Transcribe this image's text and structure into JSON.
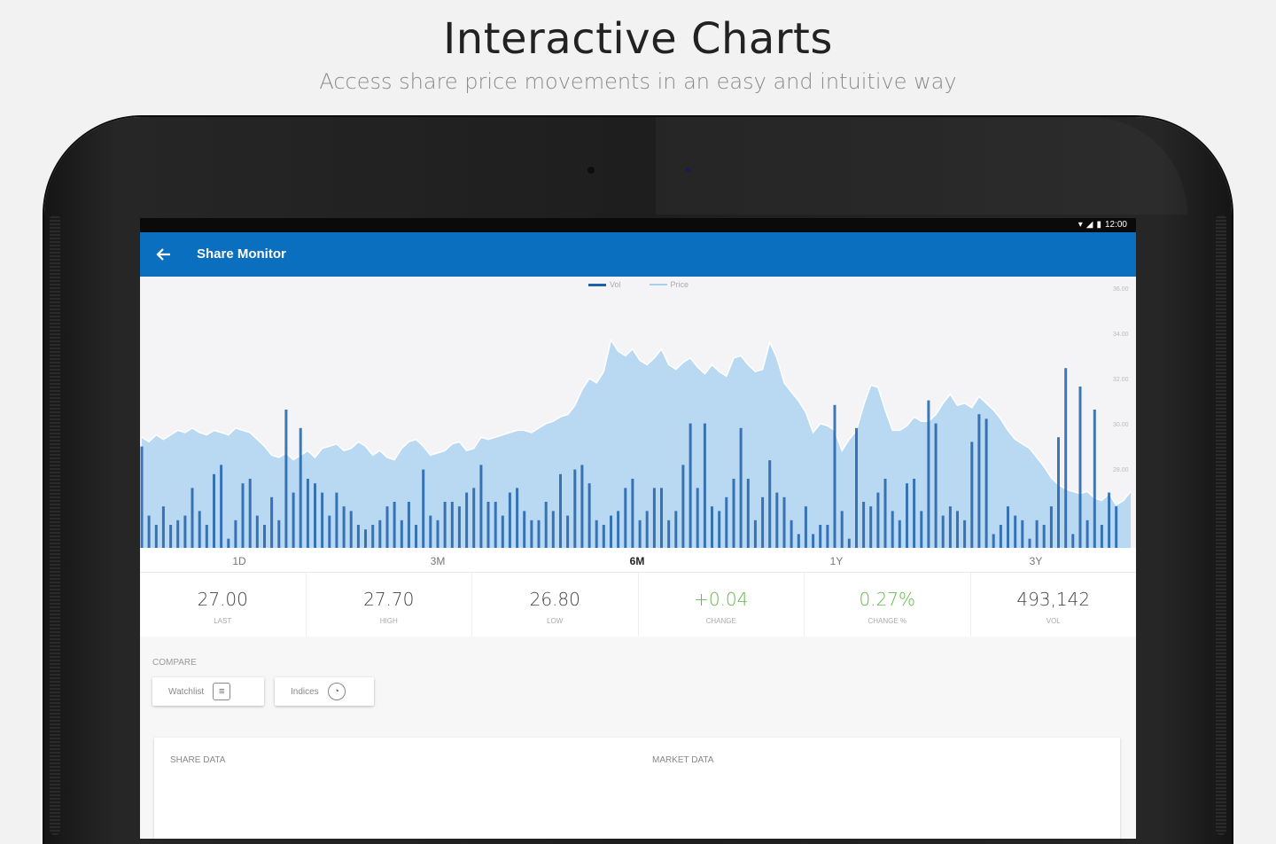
{
  "promo": {
    "title": "Interactive Charts",
    "subtitle": "Access share price movements in an easy and intuitive way"
  },
  "status_bar": {
    "time": "12:00",
    "icons": [
      "wifi-icon",
      "signal-icon",
      "battery-icon"
    ]
  },
  "app_bar": {
    "title": "Share Monitor",
    "back_icon": "arrow-left-icon",
    "color": "#0b6fbf"
  },
  "chart_data": {
    "type": "bar",
    "legend": [
      "Vol",
      "Price"
    ],
    "colors": {
      "vol": "#1f5fa8",
      "price_fill": "#b9d9f3",
      "price_line": "#ffffff"
    },
    "yticks": [
      "36.00",
      "34.00",
      "32.00",
      "30.00",
      "28.00",
      "26.00"
    ],
    "price": [
      29.4,
      29.2,
      29.5,
      29.3,
      29.5,
      29.7,
      29.6,
      29.8,
      29.6,
      29.5,
      29.7,
      29.6,
      29.5,
      29.8,
      29.7,
      29.6,
      29.3,
      29.0,
      28.6,
      28.5,
      28.7,
      28.4,
      28.6,
      28.8,
      28.5,
      28.9,
      29.0,
      29.1,
      28.8,
      28.9,
      29.2,
      29.0,
      28.6,
      28.8,
      28.5,
      28.4,
      28.9,
      29.2,
      29.3,
      29.0,
      28.6,
      28.7,
      28.8,
      29.1,
      29.2,
      28.8,
      28.9,
      29.4,
      29.3,
      29.4,
      29.5,
      29.6,
      29.7,
      29.7,
      29.6,
      29.8,
      30.0,
      30.1,
      30.3,
      30.4,
      30.8,
      31.5,
      32.0,
      31.8,
      32.3,
      33.7,
      33.2,
      33.0,
      33.3,
      32.8,
      32.6,
      32.9,
      33.3,
      32.6,
      32.4,
      32.7,
      32.9,
      32.5,
      32.2,
      32.6,
      32.3,
      32.1,
      32.9,
      33.0,
      32.6,
      32.3,
      32.4,
      33.6,
      32.9,
      31.8,
      31.4,
      31.0,
      30.5,
      29.6,
      30.0,
      29.9,
      29.7,
      28.8,
      29.3,
      29.7,
      30.8,
      31.7,
      31.6,
      30.6,
      29.7,
      29.7,
      29.9,
      30.3,
      30.1,
      30.1,
      30.4,
      30.9,
      31.3,
      30.8,
      30.9,
      30.7,
      31.2,
      30.9,
      30.6,
      30.2,
      29.7,
      29.3,
      29.1,
      28.9,
      28.5,
      28.1,
      27.6,
      27.3,
      27.1,
      27.0,
      26.9,
      27.0,
      26.7,
      26.6,
      26.9,
      26.4,
      26.6,
      27.0
    ],
    "volume": [
      2.2,
      0.7,
      0.5,
      0.9,
      0.5,
      0.6,
      0.7,
      1.3,
      0.8,
      0.5,
      1.6,
      1.8,
      0.2,
      0.6,
      1.4,
      1.5,
      0.7,
      0.5,
      1.1,
      0.6,
      1.4,
      1.2,
      2.6,
      1.5,
      1.4,
      1.2,
      0.7,
      1.2,
      0.9,
      0.8,
      0.5,
      0.4,
      0.5,
      0.6,
      0.9,
      1.0,
      0.6,
      1.0,
      0.5,
      1.7,
      0.7,
      0.6,
      1.0,
      1.0,
      0.9,
      1.2,
      1.3,
      1.8,
      1.0,
      1.0,
      0.7,
      1.2,
      1.3,
      0.8,
      0.6,
      0.6,
      1.0,
      0.8,
      1.6,
      0.7,
      1.7,
      1.8,
      1.4,
      0.6,
      0.5,
      0.7,
      0.8,
      1.3,
      1.5,
      0.6,
      0.8,
      1.3,
      1.3,
      0.6,
      0.8,
      1.8,
      2.7,
      1.3,
      1.1,
      0.9,
      0.8,
      1.1,
      1.5,
      2.6,
      1.5,
      0.6,
      1.1,
      1.9,
      1.2,
      1.1,
      0.6,
      0.3,
      0.9,
      0.3,
      0.5,
      0.5,
      0.4,
      0.8,
      0.2,
      2.6,
      1.0,
      0.9,
      1.2,
      1.5,
      0.8,
      0.6,
      1.4,
      1.5,
      0.8,
      0.5,
      1.2,
      0.7,
      0.9,
      0.8,
      0.6,
      0.7,
      1.5,
      0.6,
      0.3,
      0.5,
      0.9,
      0.7,
      0.6,
      0.2,
      0.6,
      0.5,
      0.9,
      0.5,
      0.7,
      0.3,
      1.1,
      0.6,
      0.4,
      0.5,
      1.2,
      0.9
    ],
    "spikes": {
      "20": 3.0,
      "78": 2.7,
      "96": 3.1,
      "109": 3.2,
      "110": 2.7,
      "115": 2.3,
      "116": 2.9,
      "117": 2.8,
      "127": 2.4,
      "128": 3.9,
      "130": 3.5,
      "132": 3.0,
      "141": 1.4,
      "143": 1.3,
      "145": 1.0,
      "146": 1.2
    }
  },
  "range_tabs": [
    {
      "label": "1D"
    },
    {
      "label": "3M"
    },
    {
      "label": "6M",
      "active": true
    },
    {
      "label": "1Y"
    },
    {
      "label": "3Y"
    }
  ],
  "stats": [
    {
      "value": "27.00",
      "label": "LAST"
    },
    {
      "value": "27.70",
      "label": "HIGH"
    },
    {
      "value": "26.80",
      "label": "LOW"
    },
    {
      "value": "+0.04",
      "label": "CHANGE",
      "positive": true
    },
    {
      "value": "0.27%",
      "label": "CHANGE %",
      "positive": true
    },
    {
      "value": "493,142",
      "label": "VOL"
    }
  ],
  "compare": {
    "label": "COMPARE",
    "watchlist_label": "Watchlist",
    "indices_label": "Indices",
    "watchlist_icon": "list-icon",
    "indices_icon": "pie-chart-icon"
  },
  "cards": {
    "share_data": "SHARE DATA",
    "market_data": "MARKET DATA"
  }
}
